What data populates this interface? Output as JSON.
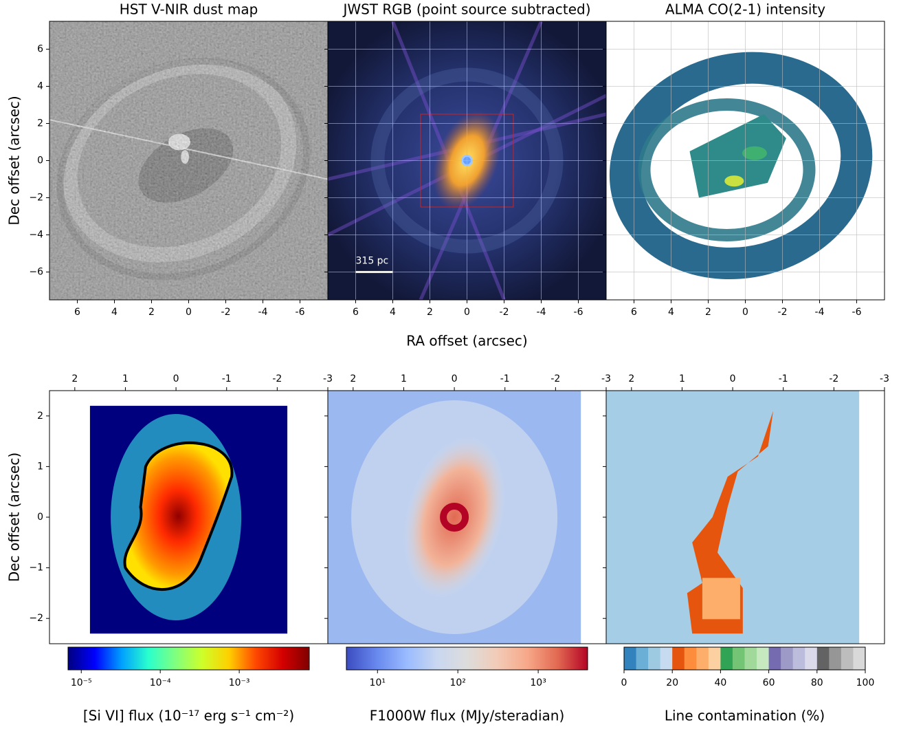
{
  "chart_data": [
    {
      "type": "image",
      "title": "HST V-NIR dust map",
      "ylabel": "Dec offset (arcsec)",
      "xlim": [
        7.5,
        -7.5
      ],
      "ylim": [
        -7.5,
        7.5
      ],
      "xticks": [
        6,
        4,
        2,
        0,
        -2,
        -4,
        -6
      ],
      "yticks": [
        {
          "value": -6,
          "label": "−6"
        },
        {
          "value": -4,
          "label": "−4"
        },
        {
          "value": -2,
          "label": "−2"
        },
        0,
        2,
        4,
        6
      ],
      "xaxis": "bottom",
      "ytick_labels": true,
      "grid": false
    },
    {
      "type": "image",
      "title": "JWST RGB (point source subtracted)",
      "xlabel": "RA offset (arcsec)",
      "annotation": "315 pc",
      "xlim": [
        7.5,
        -7.5
      ],
      "ylim": [
        -7.5,
        7.5
      ],
      "xticks": [
        6,
        4,
        2,
        0,
        -2,
        -4,
        -6
      ],
      "yticks": [
        -6,
        -4,
        -2,
        0,
        2,
        4,
        6
      ],
      "xaxis": "bottom",
      "ytick_labels": false,
      "grid": true
    },
    {
      "type": "image",
      "title": "ALMA CO(2-1) intensity",
      "xlim": [
        7.5,
        -7.5
      ],
      "ylim": [
        -7.5,
        7.5
      ],
      "xticks": [
        6,
        4,
        2,
        0,
        -2,
        -4,
        -6
      ],
      "yticks": [
        -6,
        -4,
        -2,
        0,
        2,
        4,
        6
      ],
      "xaxis": "bottom",
      "ytick_labels": false,
      "grid": true
    },
    {
      "type": "image",
      "ylabel": "Dec offset (arcsec)",
      "xlim": [
        2.5,
        -3
      ],
      "ylim": [
        -2.5,
        2.5
      ],
      "xticks": [
        2,
        1,
        0,
        -1,
        -2,
        -3
      ],
      "yticks": [
        {
          "value": -2,
          "label": "−2"
        },
        {
          "value": -1,
          "label": "−1"
        },
        0,
        1,
        2
      ],
      "xaxis": "top",
      "ytick_labels": true,
      "grid": false
    },
    {
      "type": "image",
      "xlim": [
        2.5,
        -3
      ],
      "ylim": [
        -2.5,
        2.5
      ],
      "xticks": [
        2,
        1,
        0,
        -1,
        -2,
        -3
      ],
      "yticks": [
        -2,
        -1,
        0,
        1,
        2
      ],
      "xaxis": "top",
      "ytick_labels": false,
      "grid": false
    },
    {
      "type": "image",
      "xlim": [
        2.5,
        -3
      ],
      "ylim": [
        -2.5,
        2.5
      ],
      "xticks": [
        2,
        1,
        0,
        -1,
        -2,
        -3
      ],
      "yticks": [
        -2,
        -1,
        0,
        1,
        2
      ],
      "xaxis": "top",
      "ytick_labels": false,
      "grid": false
    },
    {
      "type": "colorbar",
      "label": "[Si VI] flux (10⁻¹⁷ erg s⁻¹ cm⁻²)",
      "log": true,
      "xlim": [
        6.8e-06,
        0.0077
      ],
      "xticks": [
        {
          "value": 1e-05,
          "label": "10⁻⁵"
        },
        {
          "value": 0.0001,
          "label": "10⁻⁴"
        },
        {
          "value": 0.001,
          "label": "10⁻³"
        }
      ],
      "colors": [
        "#00007f",
        "#0000ff",
        "#00a0ff",
        "#2affcd",
        "#7fff7f",
        "#cdff2a",
        "#ffd000",
        "#ff4800",
        "#d40000",
        "#7f0000"
      ]
    },
    {
      "type": "colorbar",
      "label": "F1000W flux (MJy/steradian)",
      "log": true,
      "xlim": [
        4.1,
        4120
      ],
      "xticks": [
        {
          "value": 10,
          "label": "10¹"
        },
        {
          "value": 100,
          "label": "10²"
        },
        {
          "value": 1000,
          "label": "10³"
        }
      ],
      "colors": [
        "#3b4cc0",
        "#6788ee",
        "#9abbff",
        "#c9d7f0",
        "#dddcdc",
        "#f2cbb7",
        "#f7a889",
        "#e26952",
        "#b40426"
      ]
    },
    {
      "type": "colorbar",
      "label": "Line contamination (%)",
      "log": false,
      "segmented": true,
      "xlim": [
        0,
        100
      ],
      "xticks": [
        0,
        20,
        40,
        60,
        80,
        100
      ],
      "colors": [
        "#3182bd",
        "#6baed6",
        "#9ecae1",
        "#c6dbef",
        "#e6550d",
        "#fd8d3c",
        "#fdae6b",
        "#fdd0a2",
        "#31a354",
        "#74c476",
        "#a1d99b",
        "#c7e9c0",
        "#756bb1",
        "#9e9ac8",
        "#bcbddc",
        "#dadaeb",
        "#636363",
        "#969696",
        "#bdbdbd",
        "#d9d9d9"
      ]
    }
  ]
}
